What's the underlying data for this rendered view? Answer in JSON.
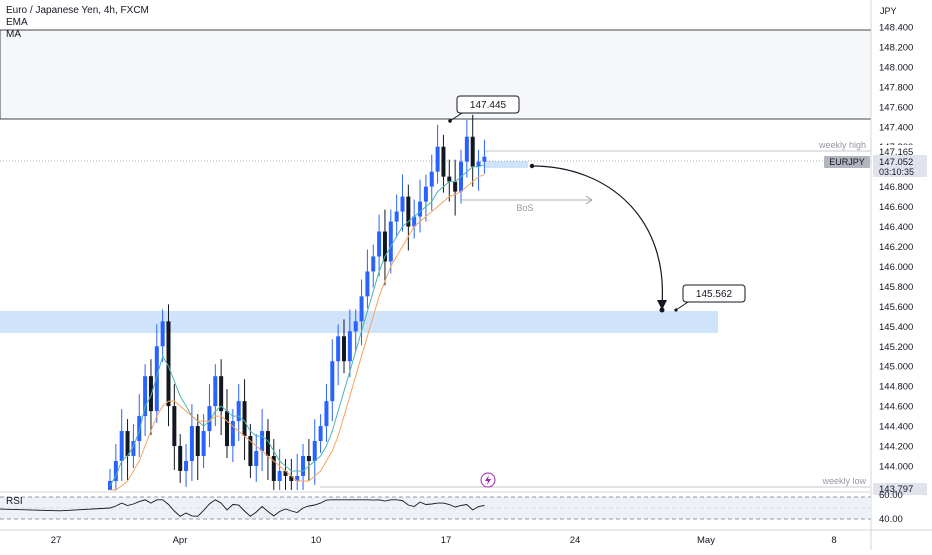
{
  "header": {
    "symbol_title": "Euro / Japanese Yen, 4h, FXCM",
    "indicators": [
      "EMA",
      "MA"
    ]
  },
  "price_axis": {
    "currency": "JPY",
    "ticks": [
      "148.400",
      "148.200",
      "148.000",
      "147.800",
      "147.600",
      "147.400",
      "147.200",
      "147.000",
      "146.800",
      "146.600",
      "146.400",
      "146.200",
      "146.000",
      "145.800",
      "145.600",
      "145.400",
      "145.200",
      "145.000",
      "144.800",
      "144.600",
      "144.400",
      "144.200",
      "144.000"
    ],
    "current_price": "147.052",
    "symbol_badge": "EURJPY",
    "countdown": "03:10:35",
    "weekly_high_price": "147.165",
    "weekly_low_price": "143.797"
  },
  "time_axis": {
    "labels": [
      "27",
      "Apr",
      "10",
      "17",
      "24",
      "May",
      "8"
    ]
  },
  "annotations": {
    "peak_label": "147.445",
    "target_label": "145.562",
    "bos_label": "BoS",
    "weekly_high_label": "weekly high",
    "weekly_low_label": "weekly low"
  },
  "rsi": {
    "label": "RSI",
    "ticks": [
      "60.00",
      "40.00"
    ]
  },
  "colors": {
    "bull": "#2962ff",
    "bear": "#131722",
    "ema": "#4db6ac",
    "ma": "#f7a35c",
    "zone": "#cfe3fb",
    "rsi_line": "#131722"
  },
  "chart_data": {
    "type": "candlestick",
    "title": "Euro / Japanese Yen, 4h, FXCM",
    "ylabel": "JPY",
    "ylim": [
      143.8,
      148.5
    ],
    "series": [
      {
        "name": "Price (close)",
        "values": [
          143.85,
          144.05,
          144.35,
          144.1,
          144.25,
          144.5,
          144.9,
          144.55,
          145.2,
          145.45,
          144.6,
          144.2,
          143.95,
          144.05,
          144.4,
          144.1,
          144.35,
          144.6,
          144.9,
          144.55,
          144.2,
          144.45,
          144.65,
          144.3,
          144.0,
          144.15,
          144.35,
          144.1,
          143.85,
          143.95,
          143.9,
          143.85,
          143.9,
          144.1,
          144.05,
          144.25,
          144.4,
          144.65,
          145.05,
          145.3,
          145.05,
          145.35,
          145.45,
          145.7,
          145.95,
          146.1,
          146.35,
          146.05,
          146.45,
          146.55,
          146.7,
          146.4,
          146.5,
          146.65,
          146.8,
          146.95,
          147.2,
          146.9,
          146.85,
          146.75,
          147.05,
          147.3,
          147.0,
          147.05,
          147.1
        ]
      },
      {
        "name": "EMA",
        "values": [
          143.8,
          143.9,
          144.05,
          144.1,
          144.2,
          144.35,
          144.6,
          144.7,
          144.9,
          145.1,
          145.0,
          144.85,
          144.7,
          144.6,
          144.5,
          144.45,
          144.4,
          144.45,
          144.55,
          144.6,
          144.55,
          144.5,
          144.5,
          144.45,
          144.35,
          144.3,
          144.3,
          144.25,
          144.15,
          144.05,
          144.0,
          143.95,
          143.95,
          143.95,
          144.0,
          144.05,
          144.1,
          144.2,
          144.35,
          144.55,
          144.75,
          144.95,
          145.15,
          145.35,
          145.55,
          145.75,
          145.95,
          146.1,
          146.2,
          146.3,
          146.4,
          146.45,
          146.5,
          146.55,
          146.6,
          146.65,
          146.75,
          146.8,
          146.85,
          146.85,
          146.9,
          146.95,
          147.0,
          147.0,
          147.02
        ]
      },
      {
        "name": "MA",
        "values": [
          143.7,
          143.75,
          143.8,
          143.85,
          143.95,
          144.05,
          144.2,
          144.35,
          144.5,
          144.6,
          144.65,
          144.65,
          144.6,
          144.55,
          144.5,
          144.45,
          144.45,
          144.45,
          144.5,
          144.5,
          144.45,
          144.4,
          144.35,
          144.3,
          144.25,
          144.2,
          144.15,
          144.1,
          144.05,
          144.0,
          143.95,
          143.9,
          143.85,
          143.85,
          143.85,
          143.9,
          143.95,
          144.05,
          144.15,
          144.3,
          144.5,
          144.7,
          144.9,
          145.1,
          145.3,
          145.5,
          145.7,
          145.85,
          146.0,
          146.1,
          146.2,
          146.3,
          146.4,
          146.45,
          146.5,
          146.55,
          146.6,
          146.65,
          146.7,
          146.72,
          146.75,
          146.8,
          146.85,
          146.9,
          146.92
        ]
      }
    ],
    "annotations": [
      {
        "label": "147.445",
        "value": 147.445
      },
      {
        "label": "145.562",
        "value": 145.562
      },
      {
        "label": "BoS"
      },
      {
        "label": "weekly high",
        "value": 147.165
      },
      {
        "label": "weekly low",
        "value": 143.797
      }
    ],
    "rsi_ylim": [
      30,
      70
    ],
    "grid": false
  }
}
